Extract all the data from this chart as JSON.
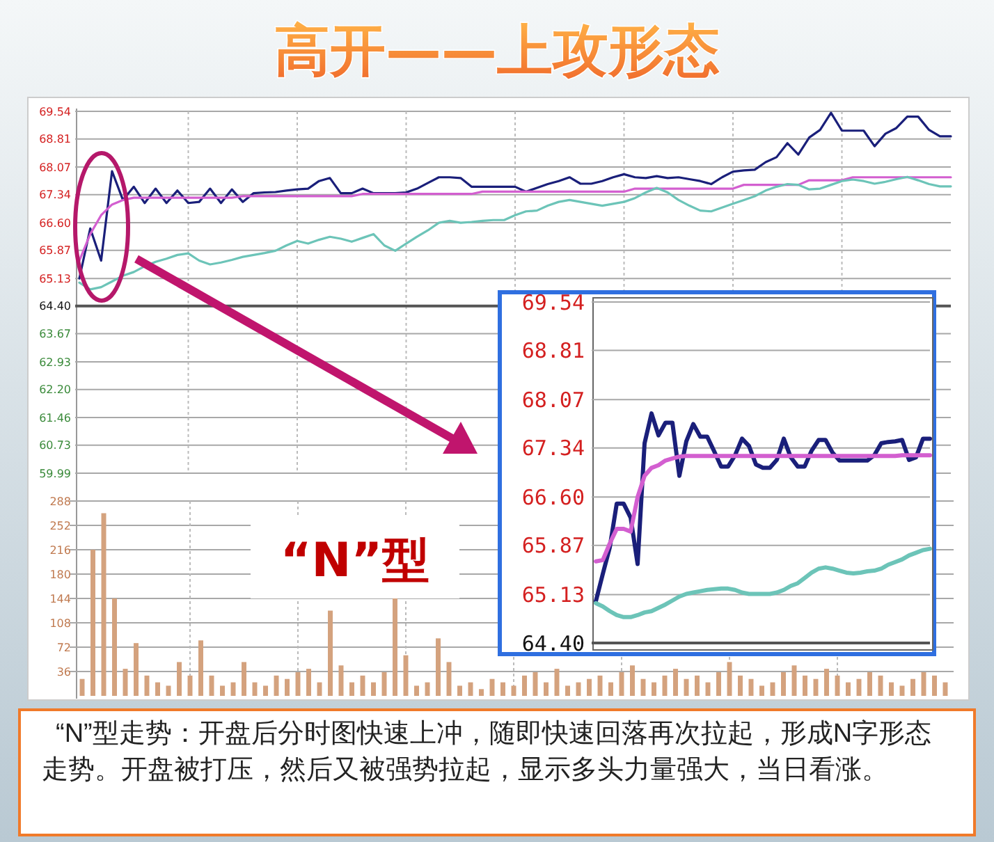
{
  "chart_data": [
    {
      "type": "line",
      "title": "高开——上攻形态",
      "annotations": [
        "“N”型",
        "“N”型走势：开盘后分时图快速上冲，随即快速回落再次拉起，形成N字形态走势。开盘被打压，然后又被强势拉起，显示多头力量强大，当日看涨。"
      ],
      "categories": [
        null,
        null,
        null,
        null,
        null,
        null,
        null,
        null,
        null,
        null,
        null,
        null,
        null,
        null,
        null,
        null,
        null,
        null,
        null,
        null,
        null,
        null,
        null,
        null,
        null,
        null,
        null,
        null,
        null,
        null,
        null,
        null,
        null,
        null,
        null,
        null,
        null,
        null,
        null,
        null,
        null,
        null,
        null,
        null,
        null,
        null,
        null,
        null,
        null,
        null,
        null,
        null,
        null,
        null,
        null,
        null,
        null,
        null,
        null,
        null,
        null,
        null,
        null,
        null,
        null,
        null,
        null,
        null,
        null,
        null,
        null,
        null,
        null,
        null,
        null,
        null,
        null,
        null,
        null,
        null,
        null
      ],
      "series": [
        {
          "color": "#1a1f7a",
          "values": [
            65.13,
            66.45,
            65.6,
            67.96,
            67.2,
            67.55,
            67.12,
            67.5,
            67.12,
            67.45,
            67.12,
            67.15,
            67.5,
            67.12,
            67.48,
            67.15,
            67.38,
            67.4,
            67.41,
            67.45,
            67.48,
            67.5,
            67.7,
            67.78,
            67.38,
            67.38,
            67.5,
            67.38,
            67.38,
            67.38,
            67.4,
            67.5,
            67.65,
            67.8,
            67.8,
            67.78,
            67.55,
            67.55,
            67.55,
            67.55,
            67.55,
            67.42,
            67.52,
            67.62,
            67.7,
            67.8,
            67.63,
            67.63,
            67.7,
            67.8,
            67.88,
            67.8,
            67.78,
            67.83,
            67.78,
            67.8,
            67.75,
            67.7,
            67.62,
            67.8,
            67.95,
            67.98,
            68.0,
            68.2,
            68.33,
            68.7,
            68.4,
            68.85,
            69.05,
            69.5,
            69.03,
            69.03,
            69.03,
            68.62,
            68.95,
            69.1,
            69.4,
            69.4,
            69.05,
            68.88,
            68.88
          ]
        },
        {
          "color": "#d35fd0",
          "values": [
            65.6,
            66.3,
            66.8,
            67.08,
            67.2,
            67.26,
            67.26,
            67.26,
            67.26,
            67.26,
            67.26,
            67.26,
            67.26,
            67.26,
            67.26,
            67.3,
            67.3,
            67.3,
            67.3,
            67.3,
            67.3,
            67.3,
            67.3,
            67.3,
            67.3,
            67.3,
            67.36,
            67.36,
            67.36,
            67.36,
            67.36,
            67.36,
            67.36,
            67.36,
            67.36,
            67.36,
            67.36,
            67.42,
            67.42,
            67.42,
            67.42,
            67.42,
            67.42,
            67.42,
            67.42,
            67.42,
            67.42,
            67.42,
            67.42,
            67.42,
            67.42,
            67.5,
            67.5,
            67.5,
            67.5,
            67.5,
            67.5,
            67.5,
            67.5,
            67.5,
            67.5,
            67.6,
            67.6,
            67.6,
            67.6,
            67.6,
            67.6,
            67.72,
            67.72,
            67.72,
            67.72,
            67.8,
            67.8,
            67.8,
            67.8,
            67.8,
            67.8,
            67.8,
            67.8,
            67.8,
            67.8
          ]
        },
        {
          "color": "#6cc4b8",
          "values": [
            65.02,
            64.84,
            64.9,
            65.05,
            65.2,
            65.3,
            65.45,
            65.57,
            65.65,
            65.75,
            65.79,
            65.6,
            65.5,
            65.55,
            65.62,
            65.7,
            65.75,
            65.8,
            65.86,
            66.0,
            66.12,
            66.05,
            66.15,
            66.23,
            66.18,
            66.1,
            66.2,
            66.3,
            66.0,
            65.86,
            66.05,
            66.23,
            66.4,
            66.6,
            66.65,
            66.6,
            66.62,
            66.65,
            66.67,
            66.67,
            66.8,
            66.9,
            66.92,
            67.05,
            67.15,
            67.2,
            67.15,
            67.1,
            67.05,
            67.1,
            67.15,
            67.25,
            67.4,
            67.52,
            67.4,
            67.2,
            67.05,
            66.92,
            66.9,
            67.0,
            67.1,
            67.2,
            67.3,
            67.45,
            67.55,
            67.62,
            67.6,
            67.48,
            67.5,
            67.6,
            67.7,
            67.74,
            67.7,
            67.63,
            67.68,
            67.75,
            67.81,
            67.72,
            67.62,
            67.56,
            67.56
          ]
        }
      ],
      "ylim": [
        59.99,
        69.54
      ],
      "yticks": [
        {
          "value": 59.99,
          "label": "59.99"
        },
        60.73,
        61.46,
        {
          "value": 62.2,
          "label": "62.20"
        },
        62.93,
        63.67,
        {
          "value": 64.4,
          "label": "64.40"
        },
        65.13,
        {
          "value": 65.87,
          "label": "65.87"
        },
        {
          "value": 66.6,
          "label": "66.60"
        },
        67.34,
        {
          "value": 68.07,
          "label": "68.07"
        },
        68.81,
        69.54
      ],
      "ref_lines": [
        {
          "axis": "y",
          "value": 64.4
        }
      ],
      "grid": true,
      "tick_labels": "y"
    },
    {
      "type": "bar",
      "color": "#d4a27e",
      "categories": [
        null,
        null,
        null,
        null,
        null,
        null,
        null,
        null,
        null,
        null,
        null,
        null,
        null,
        null,
        null,
        null,
        null,
        null,
        null,
        null,
        null,
        null,
        null,
        null,
        null,
        null,
        null,
        null,
        null,
        null,
        null,
        null,
        null,
        null,
        null,
        null,
        null,
        null,
        null,
        null,
        null,
        null,
        null,
        null,
        null,
        null,
        null,
        null,
        null,
        null,
        null,
        null,
        null,
        null,
        null,
        null,
        null,
        null,
        null,
        null,
        null,
        null,
        null,
        null,
        null,
        null,
        null,
        null,
        null,
        null,
        null,
        null,
        null,
        null,
        null,
        null,
        null,
        null,
        null,
        null,
        null
      ],
      "values": [
        25,
        216,
        270,
        144,
        40,
        78,
        30,
        20,
        15,
        50,
        30,
        82,
        30,
        15,
        20,
        50,
        20,
        15,
        30,
        25,
        35,
        40,
        20,
        126,
        45,
        20,
        30,
        20,
        35,
        144,
        60,
        15,
        20,
        85,
        50,
        15,
        20,
        10,
        25,
        20,
        15,
        30,
        35,
        20,
        40,
        15,
        20,
        25,
        30,
        20,
        35,
        45,
        25,
        20,
        30,
        40,
        25,
        30,
        20,
        35,
        50,
        30,
        25,
        15,
        20,
        35,
        45,
        30,
        25,
        40,
        30,
        20,
        25,
        35,
        30,
        20,
        15,
        25,
        35,
        30,
        20
      ],
      "ylim": [
        0,
        288
      ],
      "yticks": [
        36,
        72,
        108,
        144,
        180,
        216,
        252,
        288
      ],
      "grid": true,
      "tick_labels": "y"
    },
    {
      "type": "line",
      "categories": [
        null,
        null,
        null,
        null,
        null,
        null,
        null,
        null,
        null,
        null,
        null,
        null,
        null,
        null,
        null,
        null,
        null,
        null,
        null,
        null,
        null,
        null,
        null,
        null,
        null,
        null,
        null,
        null,
        null,
        null,
        null,
        null,
        null,
        null,
        null,
        null,
        null,
        null,
        null,
        null,
        null,
        null,
        null,
        null,
        null,
        null,
        null,
        null,
        null
      ],
      "series": [
        {
          "color": "#1a1f7a",
          "values": [
            65.03,
            65.44,
            65.84,
            66.5,
            66.5,
            66.29,
            65.59,
            67.41,
            67.86,
            67.53,
            67.72,
            67.72,
            66.92,
            67.44,
            67.7,
            67.51,
            67.51,
            67.29,
            67.06,
            67.06,
            67.23,
            67.48,
            67.37,
            67.09,
            67.04,
            67.04,
            67.16,
            67.48,
            67.2,
            67.06,
            67.06,
            67.3,
            67.46,
            67.46,
            67.27,
            67.15,
            67.15,
            67.15,
            67.15,
            67.15,
            67.23,
            67.41,
            67.43,
            67.44,
            67.46,
            67.16,
            67.2,
            67.48,
            67.48
          ]
        },
        {
          "color": "#d35fd0",
          "values": [
            65.63,
            65.65,
            65.9,
            66.12,
            66.12,
            66.08,
            66.6,
            66.92,
            67.04,
            67.08,
            67.15,
            67.18,
            67.21,
            67.22,
            67.22,
            67.22,
            67.22,
            67.22,
            67.22,
            67.22,
            67.22,
            67.22,
            67.22,
            67.22,
            67.22,
            67.22,
            67.22,
            67.22,
            67.22,
            67.22,
            67.22,
            67.22,
            67.22,
            67.22,
            67.22,
            67.22,
            67.22,
            67.22,
            67.22,
            67.22,
            67.22,
            67.22,
            67.22,
            67.22,
            67.23,
            67.23,
            67.23,
            67.23,
            67.23
          ]
        },
        {
          "color": "#6cc4b8",
          "values": [
            65.0,
            64.95,
            64.88,
            64.82,
            64.79,
            64.79,
            64.82,
            64.86,
            64.88,
            64.93,
            64.98,
            65.04,
            65.1,
            65.14,
            65.16,
            65.18,
            65.2,
            65.21,
            65.22,
            65.22,
            65.2,
            65.16,
            65.14,
            65.14,
            65.14,
            65.14,
            65.16,
            65.2,
            65.26,
            65.3,
            65.38,
            65.46,
            65.52,
            65.54,
            65.52,
            65.49,
            65.46,
            65.45,
            65.46,
            65.48,
            65.49,
            65.52,
            65.58,
            65.62,
            65.66,
            65.72,
            65.76,
            65.8,
            65.82
          ]
        }
      ],
      "ylim": [
        64.4,
        69.54
      ],
      "yticks": [
        {
          "value": 64.4,
          "label": "64.40"
        },
        65.13,
        {
          "value": 65.87,
          "label": "65.87"
        },
        {
          "value": 66.6,
          "label": "66.60"
        },
        67.34,
        {
          "value": 68.07,
          "label": "68.07"
        },
        68.81,
        69.54
      ],
      "ref_lines": [
        {
          "axis": "y",
          "value": 64.4
        }
      ],
      "grid": "y",
      "tick_labels": "y"
    }
  ]
}
